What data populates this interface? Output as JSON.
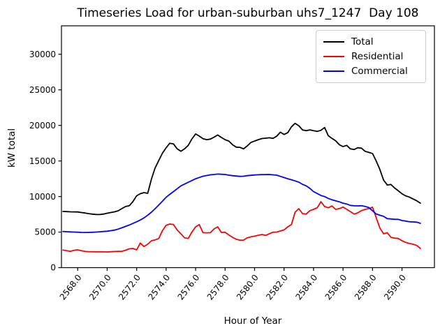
{
  "chart_data": {
    "type": "line",
    "title": "Timeseries Load for urban-suburban uhs7_1247  Day 108",
    "xlabel": "Hour of Year",
    "ylabel": "kW total",
    "xlim": [
      2566.9,
      2592.2
    ],
    "ylim": [
      0,
      34000
    ],
    "grid": false,
    "legend_position": "upper right",
    "xticks": [
      2568,
      2570,
      2572,
      2574,
      2576,
      2578,
      2580,
      2582,
      2584,
      2586,
      2588,
      2590
    ],
    "xtick_labels": [
      "2568.0",
      "2570.0",
      "2572.0",
      "2574.0",
      "2576.0",
      "2578.0",
      "2580.0",
      "2582.0",
      "2584.0",
      "2586.0",
      "2588.0",
      "2590.0"
    ],
    "yticks": [
      0,
      5000,
      10000,
      15000,
      20000,
      25000,
      30000
    ],
    "ytick_labels": [
      "0",
      "5000",
      "10000",
      "15000",
      "20000",
      "25000",
      "30000"
    ],
    "x": [
      2567.0,
      2567.25,
      2567.5,
      2567.75,
      2568.0,
      2568.25,
      2568.5,
      2568.75,
      2569.0,
      2569.25,
      2569.5,
      2569.75,
      2570.0,
      2570.25,
      2570.5,
      2570.75,
      2571.0,
      2571.25,
      2571.5,
      2571.75,
      2572.0,
      2572.25,
      2572.5,
      2572.75,
      2573.0,
      2573.25,
      2573.5,
      2573.75,
      2574.0,
      2574.25,
      2574.5,
      2574.75,
      2575.0,
      2575.25,
      2575.5,
      2575.75,
      2576.0,
      2576.25,
      2576.5,
      2576.75,
      2577.0,
      2577.25,
      2577.5,
      2577.75,
      2578.0,
      2578.25,
      2578.5,
      2578.75,
      2579.0,
      2579.25,
      2579.5,
      2579.75,
      2580.0,
      2580.25,
      2580.5,
      2580.75,
      2581.0,
      2581.25,
      2581.5,
      2581.75,
      2582.0,
      2582.25,
      2582.5,
      2582.75,
      2583.0,
      2583.25,
      2583.5,
      2583.75,
      2584.0,
      2584.25,
      2584.5,
      2584.75,
      2585.0,
      2585.25,
      2585.5,
      2585.75,
      2586.0,
      2586.25,
      2586.5,
      2586.75,
      2587.0,
      2587.25,
      2587.5,
      2587.75,
      2588.0,
      2588.25,
      2588.5,
      2588.75,
      2589.0,
      2589.25,
      2589.5,
      2589.75,
      2590.0,
      2590.25,
      2590.5,
      2590.75,
      2591.0,
      2591.25
    ],
    "series": [
      {
        "name": "Total",
        "color": "#000000",
        "values": [
          7900,
          7880,
          7850,
          7840,
          7830,
          7750,
          7680,
          7590,
          7530,
          7480,
          7470,
          7540,
          7650,
          7750,
          7850,
          8000,
          8300,
          8600,
          8700,
          9300,
          10100,
          10400,
          10550,
          10450,
          12440,
          14000,
          15060,
          16100,
          16860,
          17500,
          17400,
          16700,
          16360,
          16700,
          17190,
          18100,
          18800,
          18500,
          18130,
          18000,
          18070,
          18350,
          18650,
          18300,
          18000,
          17800,
          17300,
          16950,
          16920,
          16700,
          17100,
          17600,
          17800,
          18000,
          18150,
          18200,
          18260,
          18170,
          18490,
          19050,
          18720,
          18980,
          19800,
          20290,
          19960,
          19370,
          19250,
          19370,
          19250,
          19150,
          19310,
          19700,
          18560,
          18170,
          17840,
          17280,
          17020,
          17190,
          16700,
          16600,
          16860,
          16800,
          16360,
          16200,
          16040,
          15000,
          13800,
          12300,
          11620,
          11700,
          11200,
          10800,
          10380,
          10100,
          9920,
          9660,
          9400,
          9070
        ]
      },
      {
        "name": "Residential",
        "color": "#ff0000",
        "values": [
          2470,
          2380,
          2300,
          2430,
          2500,
          2370,
          2280,
          2250,
          2240,
          2230,
          2230,
          2220,
          2210,
          2240,
          2270,
          2290,
          2300,
          2450,
          2650,
          2700,
          2500,
          3450,
          2960,
          3300,
          3780,
          3900,
          4100,
          5200,
          5960,
          6130,
          6060,
          5300,
          4760,
          4200,
          4100,
          5000,
          5740,
          6060,
          4920,
          4900,
          4920,
          5450,
          5740,
          4950,
          4980,
          4600,
          4270,
          4000,
          3870,
          3870,
          4200,
          4330,
          4430,
          4550,
          4660,
          4530,
          4760,
          4980,
          5000,
          5150,
          5310,
          5740,
          6060,
          7800,
          8290,
          7600,
          7530,
          8020,
          8190,
          8420,
          9270,
          8600,
          8420,
          8680,
          8190,
          8300,
          8520,
          8200,
          7870,
          7530,
          7700,
          8020,
          8190,
          8300,
          8500,
          7040,
          5570,
          4760,
          4920,
          4270,
          4150,
          4100,
          3780,
          3550,
          3400,
          3290,
          3120,
          2700
        ]
      },
      {
        "name": "Commercial",
        "color": "#0000ff",
        "values": [
          5080,
          5050,
          5020,
          5000,
          4980,
          4960,
          4950,
          4960,
          4970,
          5000,
          5040,
          5080,
          5120,
          5200,
          5280,
          5430,
          5600,
          5800,
          6000,
          6220,
          6450,
          6700,
          7000,
          7380,
          7800,
          8280,
          8800,
          9350,
          9900,
          10300,
          10700,
          11100,
          11500,
          11750,
          12000,
          12250,
          12500,
          12680,
          12850,
          12950,
          13050,
          13100,
          13160,
          13130,
          13100,
          13000,
          12930,
          12880,
          12830,
          12850,
          12930,
          12980,
          13030,
          13060,
          13080,
          13090,
          13100,
          13050,
          13000,
          12830,
          12670,
          12500,
          12350,
          12200,
          12020,
          11720,
          11500,
          11150,
          10700,
          10420,
          10150,
          9990,
          9730,
          9550,
          9400,
          9250,
          9070,
          8950,
          8750,
          8700,
          8680,
          8700,
          8610,
          8450,
          7990,
          7550,
          7370,
          7210,
          6890,
          6850,
          6800,
          6790,
          6620,
          6550,
          6460,
          6430,
          6400,
          6230
        ]
      }
    ]
  }
}
